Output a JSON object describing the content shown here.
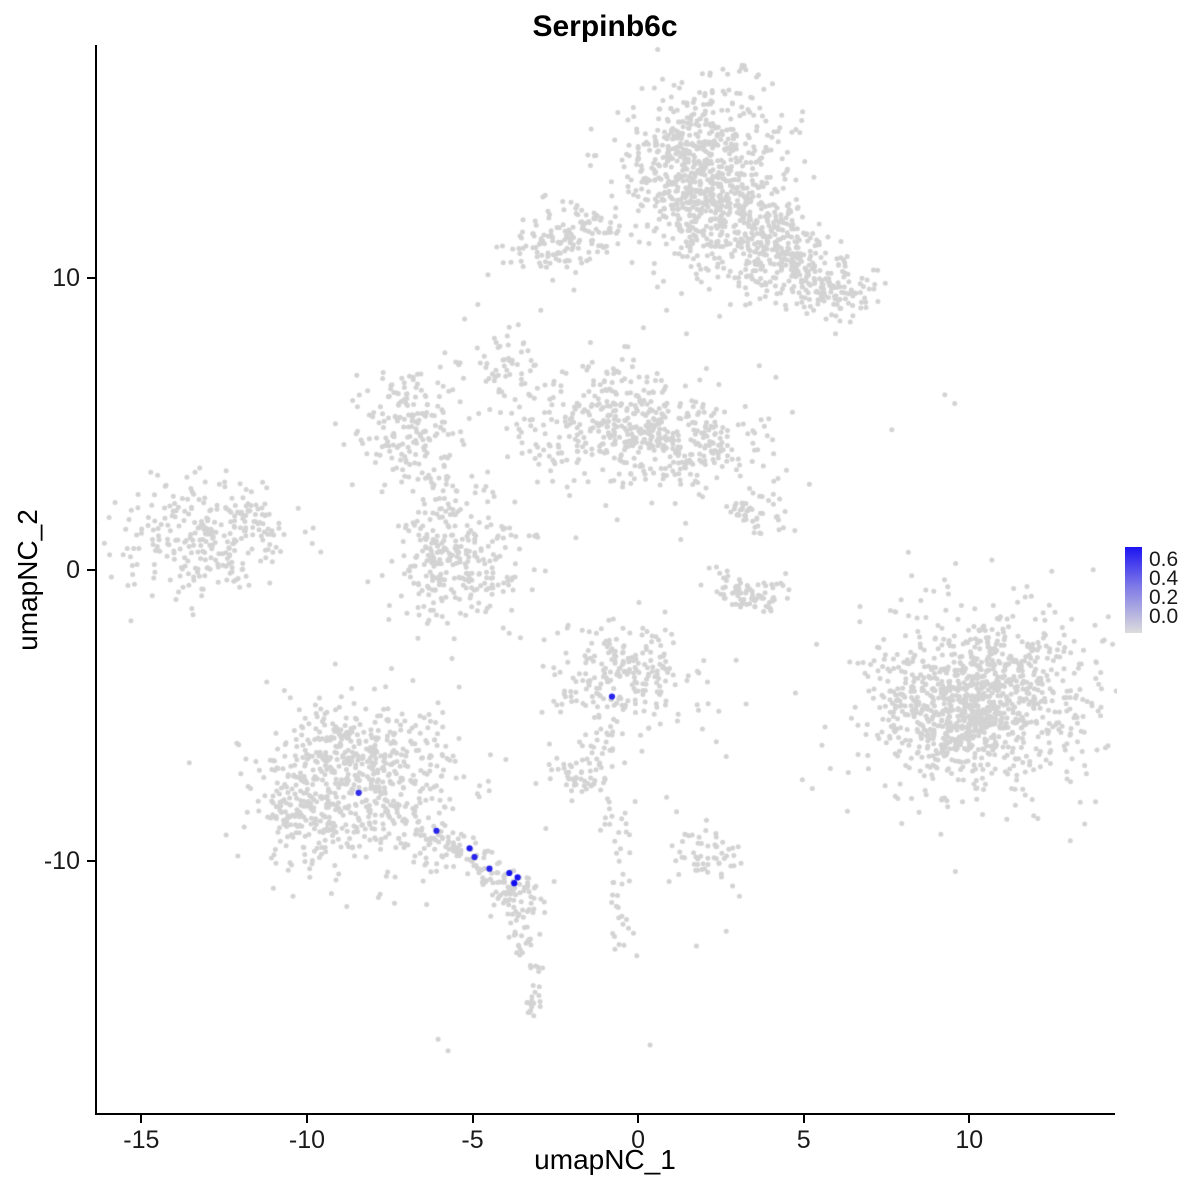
{
  "title": "Serpinb6c",
  "axes": {
    "xlabel": "umapNC_1",
    "ylabel": "umapNC_2"
  },
  "legend": {
    "labels": [
      "0.6",
      "0.4",
      "0.2",
      "0.0"
    ],
    "high_color": "#1D14F2",
    "low_color": "#DCDCDC"
  },
  "chart_data": {
    "type": "scatter",
    "title": "Serpinb6c",
    "xlabel": "umapNC_1",
    "ylabel": "umapNC_2",
    "xlim": [
      -16.4,
      14.4
    ],
    "ylim": [
      -18.7,
      18.0
    ],
    "xticks": [
      -15,
      -10,
      -5,
      0,
      5,
      10
    ],
    "yticks": [
      -10,
      0,
      10
    ],
    "grid": false,
    "legend_position": "right",
    "point_color": "#D3D3D3",
    "point_radius": 2.5,
    "highlight_radius": 3.1,
    "color_scale": {
      "min": 0.0,
      "max": 0.65,
      "low": "#D3D3D3",
      "high": "#0F0CF0"
    },
    "clusters_format": "cx, cy, sx, sy, n",
    "clusters": [
      [
        2.0,
        14.1,
        1.25,
        1.45,
        500
      ],
      [
        1.2,
        13.3,
        0.6,
        0.9,
        140
      ],
      [
        2.6,
        12.7,
        0.8,
        0.8,
        120
      ],
      [
        3.6,
        11.9,
        0.6,
        0.5,
        60
      ],
      [
        1.75,
        11.3,
        0.45,
        0.85,
        60
      ],
      [
        4.0,
        11.2,
        0.8,
        0.7,
        130
      ],
      [
        5.1,
        10.2,
        0.7,
        0.6,
        100
      ],
      [
        5.8,
        9.4,
        0.55,
        0.5,
        60
      ],
      [
        3.3,
        10.0,
        0.5,
        0.5,
        40
      ],
      [
        -2.6,
        11.2,
        0.75,
        0.6,
        90
      ],
      [
        -1.4,
        11.5,
        0.6,
        0.45,
        60
      ],
      [
        -7.0,
        5.0,
        0.9,
        1.0,
        180
      ],
      [
        -0.8,
        5.0,
        1.15,
        1.1,
        280
      ],
      [
        1.8,
        4.2,
        1.05,
        0.8,
        170
      ],
      [
        0.4,
        4.7,
        0.7,
        0.6,
        60
      ],
      [
        -4.2,
        7.0,
        0.5,
        0.6,
        45
      ],
      [
        -5.3,
        0.3,
        1.05,
        1.15,
        240
      ],
      [
        -6.3,
        0.0,
        0.35,
        0.7,
        50
      ],
      [
        -13.3,
        1.0,
        1.35,
        1.0,
        260
      ],
      [
        -11.8,
        1.8,
        0.4,
        0.4,
        30
      ],
      [
        3.5,
        1.9,
        0.5,
        0.45,
        50
      ],
      [
        10.4,
        -4.5,
        1.85,
        1.65,
        820
      ],
      [
        10.0,
        -4.8,
        1.0,
        0.9,
        260
      ],
      [
        8.2,
        -4.3,
        0.5,
        0.7,
        60
      ],
      [
        -0.5,
        -3.7,
        1.0,
        1.0,
        230
      ],
      [
        -1.9,
        -7.0,
        0.5,
        0.4,
        50
      ],
      [
        -1.2,
        -6.2,
        0.3,
        0.4,
        20
      ],
      [
        -8.6,
        -7.6,
        1.5,
        1.5,
        540
      ],
      [
        -8.3,
        -6.1,
        1.3,
        0.55,
        120
      ],
      [
        -10.3,
        -8.2,
        0.5,
        0.8,
        80
      ],
      [
        1.9,
        -9.8,
        0.55,
        0.45,
        55
      ]
    ],
    "strands": [
      {
        "pts": [
          [
            -6.8,
            -8.8
          ],
          [
            -5.9,
            -9.4
          ],
          [
            -5.0,
            -10.0
          ],
          [
            -4.3,
            -10.5
          ],
          [
            -3.8,
            -11.0
          ],
          [
            -3.6,
            -11.7
          ]
        ],
        "n": 150,
        "jitter": 0.33
      },
      {
        "pts": [
          [
            -3.6,
            -11.9
          ],
          [
            -3.5,
            -12.6
          ],
          [
            -3.6,
            -13.2
          ]
        ],
        "n": 22,
        "jitter": 0.18
      },
      {
        "pts": [
          [
            -3.2,
            -13.5
          ],
          [
            -3.0,
            -14.3
          ],
          [
            -3.3,
            -15.0
          ],
          [
            -3.7,
            -15.3
          ]
        ],
        "n": 24,
        "jitter": 0.15
      },
      {
        "pts": [
          [
            -0.8,
            -7.9
          ],
          [
            -0.6,
            -9.2
          ],
          [
            -0.5,
            -10.5
          ],
          [
            -0.7,
            -11.8
          ],
          [
            -0.4,
            -13.2
          ]
        ],
        "n": 42,
        "jitter": 0.25
      },
      {
        "pts": [
          [
            -6.4,
            3.6
          ],
          [
            -5.9,
            2.6
          ],
          [
            -5.6,
            1.7
          ]
        ],
        "n": 28,
        "jitter": 0.25
      },
      {
        "pts": [
          [
            -4.3,
            6.9
          ],
          [
            -3.7,
            5.3
          ],
          [
            -3.2,
            4.1
          ],
          [
            -2.4,
            3.7
          ]
        ],
        "n": 32,
        "jitter": 0.2
      },
      {
        "pts": [
          [
            2.2,
            -0.1
          ],
          [
            2.9,
            -0.9
          ],
          [
            3.6,
            -1.1
          ],
          [
            4.3,
            -0.7
          ]
        ],
        "n": 80,
        "jitter": 0.26
      },
      {
        "pts": [
          [
            4.3,
            10.8
          ],
          [
            5.5,
            9.7
          ]
        ],
        "n": 20,
        "jitter": 0.3
      },
      {
        "pts": [
          [
            6.3,
            9.2
          ],
          [
            6.9,
            9.8
          ]
        ],
        "n": 8,
        "jitter": 0.3
      }
    ],
    "singles": [
      [
        -3.0,
        8.9
      ],
      [
        -2.0,
        9.6
      ],
      [
        0.1,
        8.3
      ],
      [
        0.8,
        8.9
      ],
      [
        1.4,
        8.1
      ],
      [
        2.4,
        8.7
      ],
      [
        6.2,
        9.3
      ],
      [
        6.7,
        10.0
      ],
      [
        5.9,
        8.1
      ],
      [
        7.6,
        4.8
      ],
      [
        9.2,
        6.0
      ],
      [
        9.5,
        5.7
      ],
      [
        8.1,
        0.6
      ],
      [
        8.2,
        -0.2
      ],
      [
        2.9,
        -3.1
      ],
      [
        3.2,
        -4.6
      ],
      [
        4.9,
        -7.2
      ],
      [
        5.2,
        -7.5
      ],
      [
        2.3,
        -5.9
      ],
      [
        2.6,
        -6.4
      ],
      [
        -2.9,
        -2.4
      ],
      [
        -2.2,
        -2.0
      ],
      [
        0.8,
        -7.8
      ],
      [
        1.1,
        -8.3
      ],
      [
        3.0,
        -11.2
      ],
      [
        2.6,
        -12.4
      ],
      [
        1.7,
        -12.9
      ],
      [
        -11.4,
        3.0
      ],
      [
        -12.5,
        3.4
      ],
      [
        -9.9,
        0.9
      ],
      [
        -0.2,
        7.2
      ],
      [
        -1.5,
        7.8
      ],
      [
        -5.3,
        8.6
      ],
      [
        -4.9,
        9.1
      ],
      [
        4.1,
        6.6
      ],
      [
        3.6,
        7.0
      ],
      [
        -6.1,
        -16.1
      ],
      [
        -5.8,
        -16.5
      ],
      [
        0.3,
        -16.3
      ],
      [
        7.9,
        -8.7
      ],
      [
        2.0,
        6.9
      ],
      [
        4.6,
        5.4
      ]
    ],
    "highlighted_points": [
      {
        "x": -0.85,
        "y": -4.35,
        "value": 0.5
      },
      {
        "x": -8.5,
        "y": -7.65,
        "value": 0.45
      },
      {
        "x": -6.15,
        "y": -8.95,
        "value": 0.5
      },
      {
        "x": -5.15,
        "y": -9.55,
        "value": 0.55
      },
      {
        "x": -5.0,
        "y": -9.85,
        "value": 0.5
      },
      {
        "x": -4.55,
        "y": -10.25,
        "value": 0.5
      },
      {
        "x": -3.95,
        "y": -10.4,
        "value": 0.6
      },
      {
        "x": -3.8,
        "y": -10.75,
        "value": 0.65
      },
      {
        "x": -3.7,
        "y": -10.55,
        "value": 0.6
      }
    ]
  }
}
